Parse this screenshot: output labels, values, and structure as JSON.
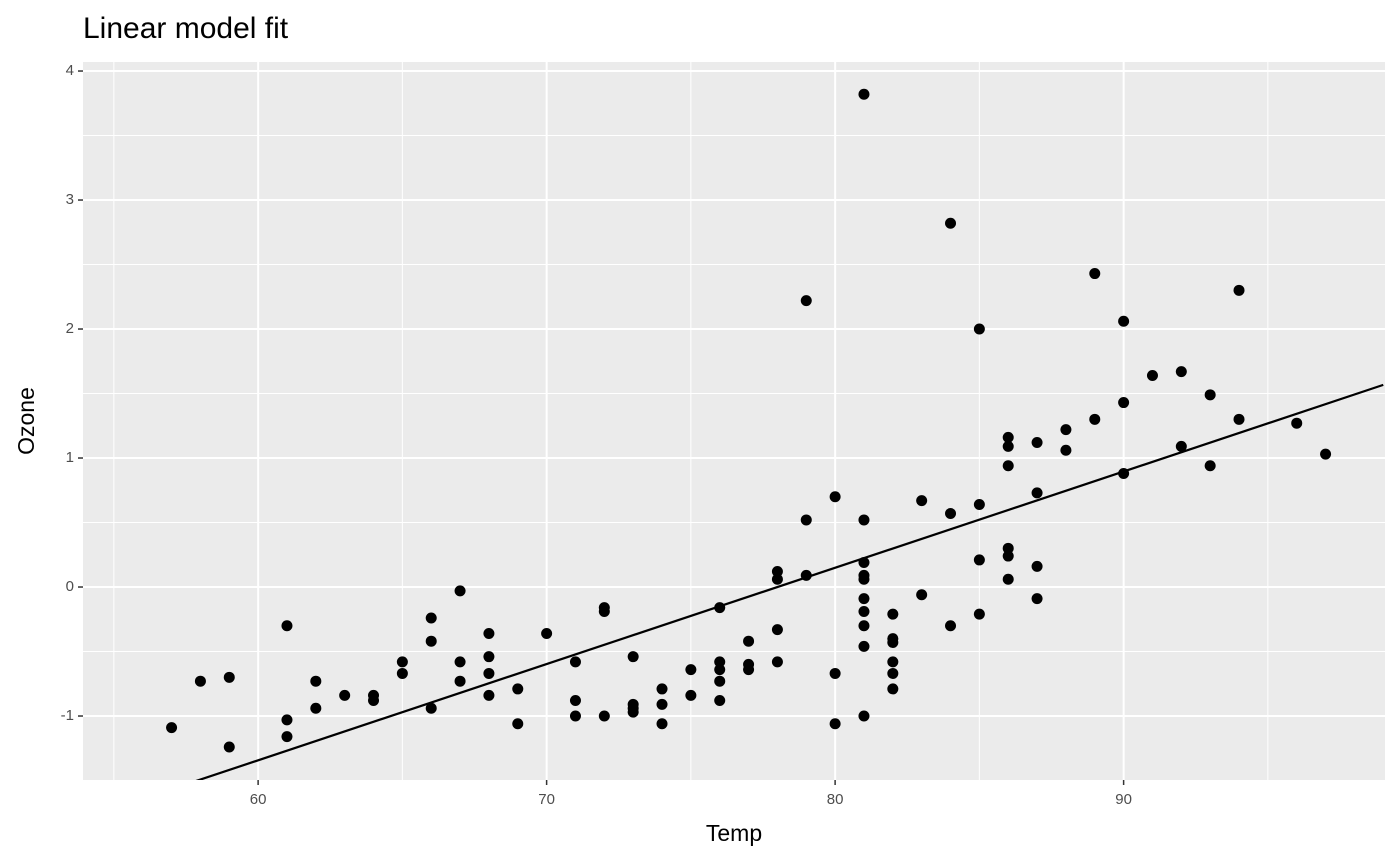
{
  "chart_data": {
    "type": "scatter",
    "title": "Linear model fit",
    "x_label": "Temp",
    "y_label": "Ozone",
    "x": [
      57,
      58,
      59,
      59,
      61,
      61,
      61,
      62,
      62,
      63,
      64,
      64,
      65,
      65,
      66,
      66,
      66,
      67,
      67,
      67,
      68,
      68,
      68,
      68,
      69,
      69,
      70,
      71,
      71,
      71,
      72,
      72,
      72,
      73,
      73,
      73,
      73,
      74,
      74,
      74,
      75,
      75,
      76,
      76,
      76,
      76,
      76,
      77,
      77,
      77,
      78,
      78,
      78,
      78,
      79,
      79,
      79,
      80,
      80,
      80,
      81,
      81,
      81,
      81,
      81,
      81,
      81,
      81,
      81,
      81,
      82,
      82,
      82,
      82,
      82,
      82,
      83,
      83,
      84,
      84,
      84,
      85,
      85,
      85,
      85,
      86,
      86,
      86,
      86,
      86,
      86,
      87,
      87,
      87,
      87,
      88,
      88,
      89,
      89,
      90,
      90,
      90,
      91,
      92,
      92,
      93,
      93,
      94,
      94,
      96,
      97
    ],
    "values": [
      -1.09,
      -0.73,
      -0.7,
      -1.24,
      -0.3,
      -1.03,
      -1.16,
      -0.73,
      -0.94,
      -0.84,
      -0.84,
      -0.88,
      -0.58,
      -0.67,
      -0.24,
      -0.42,
      -0.94,
      -0.03,
      -0.58,
      -0.73,
      -0.36,
      -0.54,
      -0.67,
      -0.84,
      -0.79,
      -1.06,
      -0.36,
      -0.58,
      -0.88,
      -1.0,
      -0.16,
      -0.19,
      -1.0,
      -0.54,
      -0.91,
      -0.94,
      -0.97,
      -0.79,
      -0.91,
      -1.06,
      -0.64,
      -0.84,
      -0.16,
      -0.58,
      -0.64,
      -0.73,
      -0.88,
      -0.42,
      -0.6,
      -0.64,
      0.12,
      0.06,
      -0.33,
      -0.58,
      2.22,
      0.52,
      0.09,
      0.7,
      -0.67,
      -1.06,
      3.82,
      0.52,
      0.19,
      0.09,
      0.06,
      -0.09,
      -0.19,
      -0.3,
      -0.46,
      -1.0,
      -0.21,
      -0.4,
      -0.43,
      -0.58,
      -0.67,
      -0.79,
      0.67,
      -0.06,
      2.82,
      0.57,
      -0.3,
      2.0,
      0.64,
      0.21,
      -0.21,
      1.16,
      1.09,
      0.94,
      0.3,
      0.24,
      0.06,
      1.12,
      0.73,
      0.16,
      -0.09,
      1.22,
      1.06,
      2.43,
      1.3,
      2.06,
      1.43,
      0.88,
      1.64,
      1.67,
      1.09,
      1.49,
      0.94,
      2.3,
      1.3,
      1.27,
      1.03
    ],
    "color": "#000000",
    "fit": {
      "x": [
        57,
        99
      ],
      "values": [
        -1.567,
        1.567
      ],
      "color": "#000000"
    },
    "xlim": [
      53.93,
      99.06
    ],
    "ylim": [
      -1.496,
      4.07
    ],
    "xticks": [
      60,
      70,
      80,
      90
    ],
    "yticks": [
      -1,
      0,
      1,
      2,
      3,
      4
    ],
    "xminor": [
      55,
      65,
      75,
      85,
      95
    ],
    "yminor": [
      -0.5,
      0.5,
      1.5,
      2.5,
      3.5
    ],
    "grid": true
  }
}
